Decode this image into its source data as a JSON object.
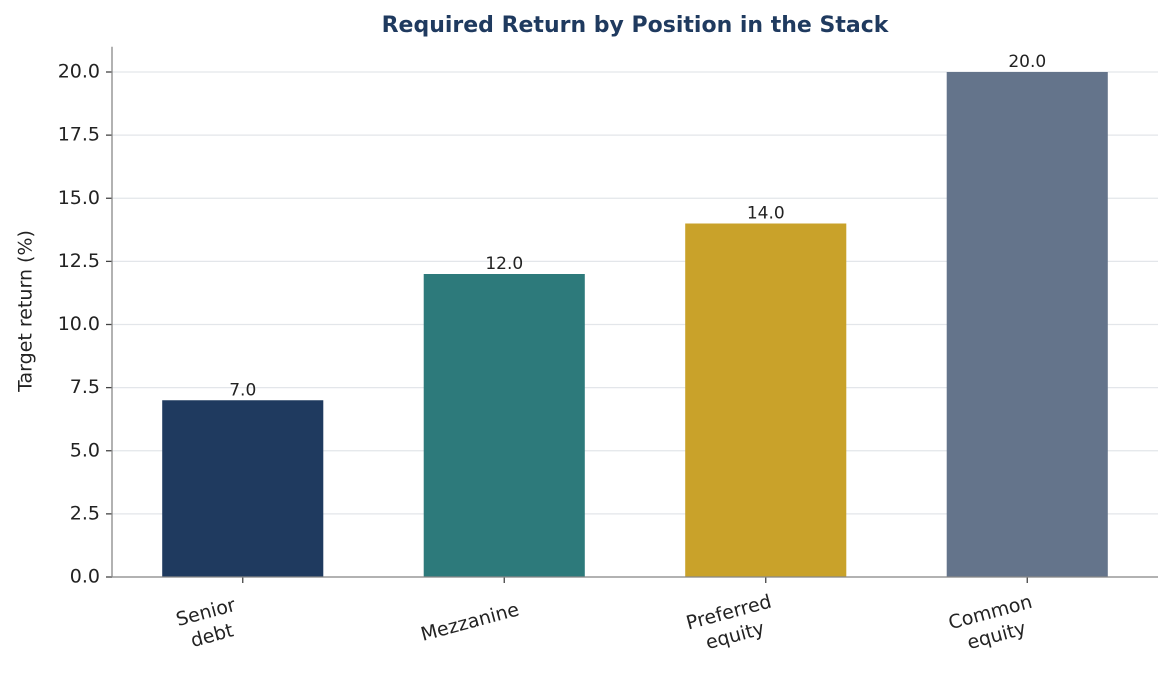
{
  "chart_data": {
    "type": "bar",
    "title": "Required Return by Position in the Stack",
    "y_label": "Target return (%)",
    "categories": [
      "Senior\ndebt",
      "Mezzanine",
      "Preferred\nequity",
      "Common\nequity"
    ],
    "values": [
      7,
      12,
      14,
      20
    ],
    "value_labels": [
      "7.0",
      "12.0",
      "14.0",
      "20.0"
    ],
    "colors": [
      "#1f3a5f",
      "#2d7a7b",
      "#c9a22a",
      "#64748b"
    ],
    "ylim": [
      0,
      21
    ],
    "yticks": [
      {
        "value": 0,
        "label": "0.0"
      },
      {
        "value": 2.5,
        "label": "2.5"
      },
      {
        "value": 5,
        "label": "5.0"
      },
      {
        "value": 7.5,
        "label": "7.5"
      },
      {
        "value": 10,
        "label": "10.0"
      },
      {
        "value": 12.5,
        "label": "12.5"
      },
      {
        "value": 15,
        "label": "15.0"
      },
      {
        "value": 17.5,
        "label": "17.5"
      },
      {
        "value": 20,
        "label": "20.0"
      }
    ],
    "grid": true
  }
}
